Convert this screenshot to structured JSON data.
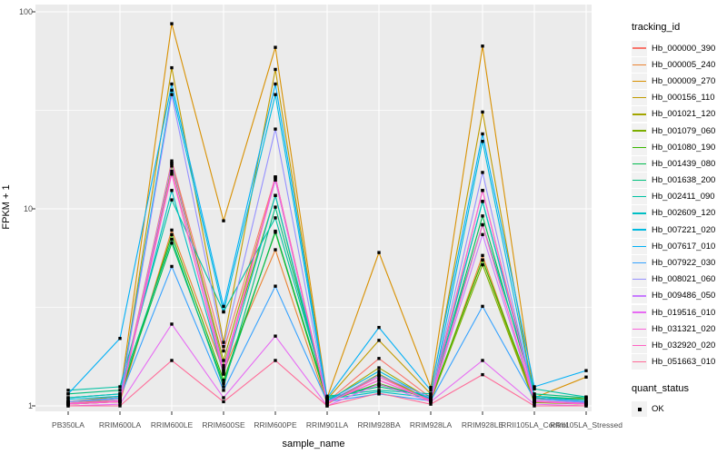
{
  "chart_data": {
    "type": "line",
    "title": "",
    "xlabel": "sample_name",
    "ylabel": "FPKM + 1",
    "y_scale": "log10",
    "ylim": [
      0.82,
      110
    ],
    "grid": true,
    "legend_position": "right",
    "y_tick_labels": [
      "100",
      "10",
      "1"
    ],
    "y_tick_values": [
      100,
      10,
      1
    ],
    "y_minor_values": [
      31.6,
      3.16
    ],
    "categories": [
      "PB350LA",
      "RRIM600LA",
      "RRIM600LE",
      "RRIM600SE",
      "RRIM600PE",
      "RRIM901LA",
      "RRIM928BA",
      "RRIM928LA",
      "RRIM928LE",
      "RRII105LA_Control",
      "RRII105LA_Stressed"
    ],
    "legend": {
      "series_title": "tracking_id",
      "shape_title": "quant_status",
      "shape_label": "OK"
    },
    "point_shape": "small-black-square",
    "series": [
      {
        "name": "Hb_000000_390",
        "color": "#F8766D",
        "values": [
          1.05,
          1.08,
          17.5,
          1.9,
          14.5,
          1.05,
          1.74,
          1.1,
          12.4,
          1.1,
          1.05
        ]
      },
      {
        "name": "Hb_000005_240",
        "color": "#EA8331",
        "values": [
          1.02,
          1.05,
          7.8,
          1.5,
          6.2,
          1.02,
          1.43,
          1.05,
          5.8,
          1.05,
          1.02
        ]
      },
      {
        "name": "Hb_000009_270",
        "color": "#D89000",
        "values": [
          1.05,
          1.12,
          87,
          8.7,
          66,
          1.1,
          6.0,
          1.24,
          67,
          1.1,
          1.4
        ]
      },
      {
        "name": "Hb_000156_110",
        "color": "#C09B00",
        "values": [
          1.03,
          1.08,
          52,
          2.1,
          51,
          1.08,
          2.15,
          1.15,
          31,
          1.08,
          1.1
        ]
      },
      {
        "name": "Hb_001021_120",
        "color": "#A3A500",
        "values": [
          1.02,
          1.05,
          17,
          1.7,
          14,
          1.05,
          1.56,
          1.08,
          5.5,
          1.05,
          1.02
        ]
      },
      {
        "name": "Hb_001079_060",
        "color": "#7CAE00",
        "values": [
          1.02,
          1.05,
          16.5,
          1.6,
          11.7,
          1.03,
          1.45,
          1.06,
          5.2,
          1.04,
          1.02
        ]
      },
      {
        "name": "Hb_001080_190",
        "color": "#39B600",
        "values": [
          1.05,
          1.1,
          7.4,
          1.35,
          7.6,
          1.05,
          1.3,
          1.08,
          5.5,
          1.1,
          1.05
        ]
      },
      {
        "name": "Hb_001439_080",
        "color": "#00BB4E",
        "values": [
          1.1,
          1.15,
          6.7,
          1.3,
          7.7,
          1.08,
          1.28,
          1.1,
          9.2,
          1.12,
          1.08
        ]
      },
      {
        "name": "Hb_001638_200",
        "color": "#00BF7D",
        "values": [
          1.15,
          1.2,
          7.0,
          1.25,
          10.2,
          1.1,
          1.25,
          1.12,
          10.9,
          1.15,
          1.1
        ]
      },
      {
        "name": "Hb_002411_090",
        "color": "#00C1A3",
        "values": [
          1.2,
          1.25,
          11.1,
          3.0,
          9.0,
          1.12,
          1.2,
          1.15,
          8.3,
          1.22,
          1.11
        ]
      },
      {
        "name": "Hb_002609_120",
        "color": "#00BFC4",
        "values": [
          1.1,
          1.15,
          12.4,
          1.45,
          11.7,
          1.08,
          1.18,
          1.1,
          10.9,
          1.12,
          1.06
        ]
      },
      {
        "name": "Hb_007221_020",
        "color": "#00BAE0",
        "values": [
          1.08,
          1.12,
          40,
          3.0,
          38,
          1.06,
          1.5,
          1.08,
          22,
          1.1,
          1.05
        ]
      },
      {
        "name": "Hb_007617_010",
        "color": "#00B0F6",
        "values": [
          1.15,
          2.2,
          43,
          3.2,
          43,
          1.1,
          2.5,
          1.2,
          24,
          1.25,
          1.51
        ]
      },
      {
        "name": "Hb_007922_030",
        "color": "#35A2FF",
        "values": [
          1.05,
          1.1,
          5.1,
          1.2,
          4.05,
          1.05,
          1.15,
          1.06,
          3.2,
          1.08,
          1.04
        ]
      },
      {
        "name": "Hb_008021_060",
        "color": "#9590FF",
        "values": [
          1.05,
          1.08,
          38,
          2.0,
          25.4,
          1.05,
          1.43,
          1.1,
          15.3,
          1.08,
          1.05
        ]
      },
      {
        "name": "Hb_009486_050",
        "color": "#C77CFF",
        "values": [
          1.03,
          1.06,
          17,
          1.55,
          14,
          1.04,
          1.35,
          1.07,
          7.4,
          1.06,
          1.03
        ]
      },
      {
        "name": "Hb_019516_010",
        "color": "#E76BF3",
        "values": [
          1.0,
          1.02,
          2.6,
          1.1,
          2.26,
          1.0,
          1.29,
          1.05,
          1.7,
          1.02,
          1.0
        ]
      },
      {
        "name": "Hb_031321_020",
        "color": "#FA62DB",
        "values": [
          1.02,
          1.05,
          15,
          1.5,
          14.5,
          1.03,
          1.4,
          1.06,
          12.4,
          1.05,
          1.02
        ]
      },
      {
        "name": "Hb_032920_020",
        "color": "#FF61C3",
        "values": [
          1.03,
          1.06,
          15.5,
          1.45,
          14.5,
          1.04,
          1.35,
          1.07,
          8.3,
          1.06,
          1.03
        ]
      },
      {
        "name": "Hb_051663_010",
        "color": "#FF6A98",
        "values": [
          1.0,
          1.0,
          1.7,
          1.05,
          1.7,
          1.0,
          1.16,
          1.02,
          1.44,
          1.0,
          1.0
        ]
      }
    ]
  },
  "colors": {
    "panel_bg": "#EBEBEB",
    "grid": "#FFFFFF",
    "axis_text": "#4D4D4D",
    "tick_mark": "#333333",
    "point": "#000000",
    "legend_key_bg": "#F2F2F2"
  }
}
